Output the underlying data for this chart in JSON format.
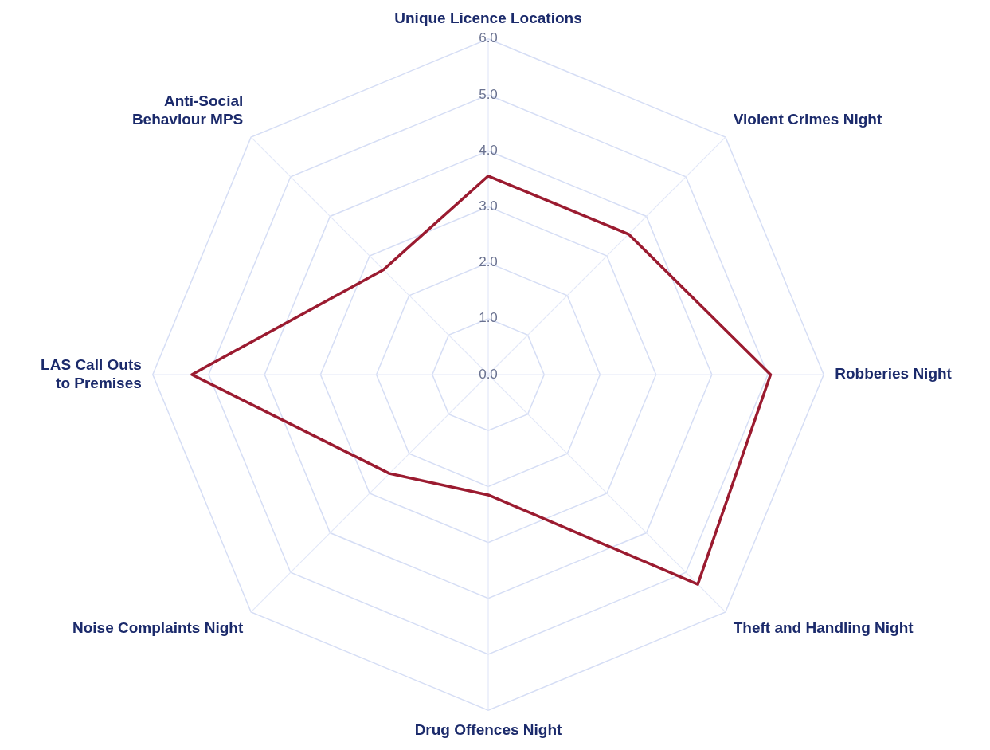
{
  "chart_data": {
    "type": "radar",
    "categories": [
      "Unique Licence Locations",
      "Violent Crimes Night",
      "Robberies Night",
      "Theft and Handling Night",
      "Drug Offences Night",
      "Noise Complaints Night",
      "LAS Call Outs\nto Premises",
      "Anti-Social\nBehaviour MPS"
    ],
    "series": [
      {
        "color": "#9b1b30",
        "values": [
          3.55,
          3.55,
          5.05,
          5.3,
          2.15,
          2.5,
          5.3,
          2.65
        ]
      }
    ],
    "ylim": [
      0,
      6
    ],
    "yticks": [
      {
        "value": 0,
        "label": "0.0"
      },
      {
        "value": 1,
        "label": "1.0"
      },
      {
        "value": 2,
        "label": "2.0"
      },
      {
        "value": 3,
        "label": "3.0"
      },
      {
        "value": 4,
        "label": "4.0"
      },
      {
        "value": 5,
        "label": "5.0"
      },
      {
        "value": 6,
        "label": "6.0"
      }
    ],
    "grid": true,
    "marker": "none",
    "line_style": "solid"
  }
}
